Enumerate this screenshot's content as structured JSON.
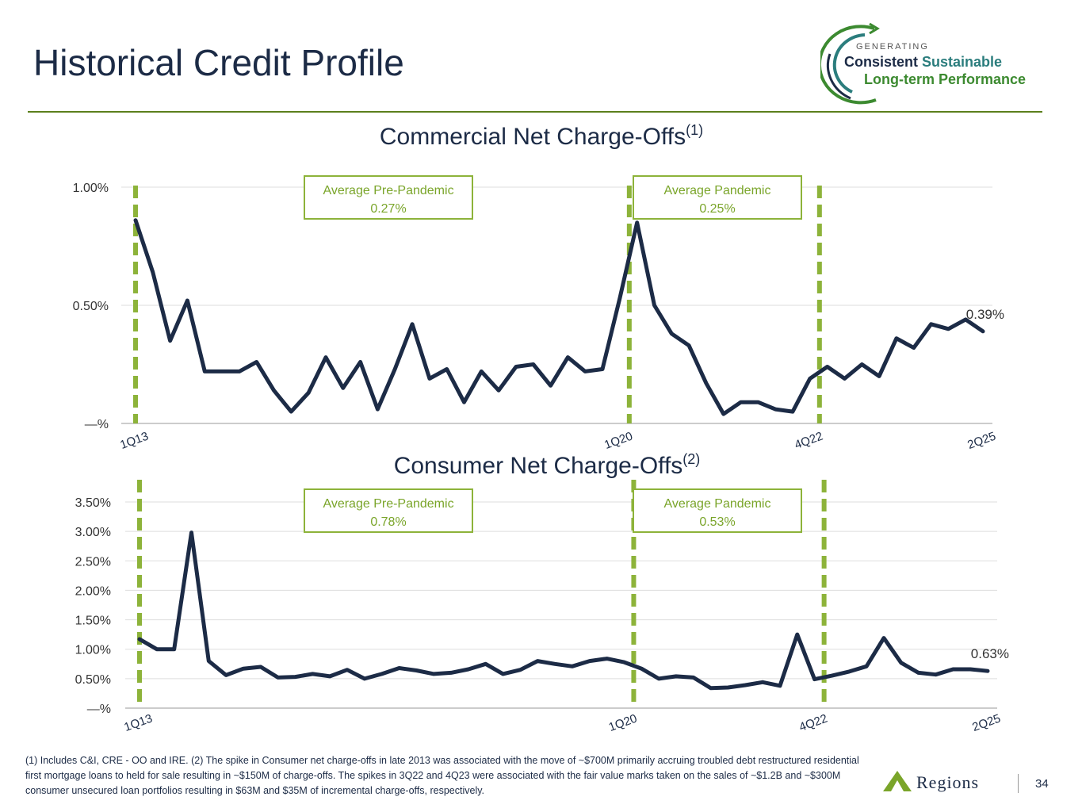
{
  "page": {
    "title": "Historical Credit Profile",
    "number": "34"
  },
  "brand": {
    "tag": "GENERATING",
    "line1_a": "Consistent",
    "line1_b": "Sustainable",
    "line2": "Long-term Performance",
    "footer_name": "Regions"
  },
  "colors": {
    "line": "#1c2b46",
    "dashed": "#8db33a",
    "box_border": "#8db33a",
    "box_text": "#7aa52a",
    "grid": "#dddddd",
    "title_rule": "#5b7f1c"
  },
  "footnote": "(1) Includes C&I, CRE - OO and IRE.  (2) The spike in Consumer net charge-offs in late 2013 was associated with the move of ~$700M primarily accruing troubled debt restructured residential first mortgage loans to held for sale resulting in ~$150M of charge-offs. The spikes in 3Q22 and 4Q23 were associated with the fair value marks taken on the sales of ~$1.2B and ~$300M consumer unsecured loan portfolios resulting in $63M and $35M of incremental charge-offs, respectively.",
  "chart_data": [
    {
      "type": "line",
      "title": "Commercial Net Charge-Offs",
      "title_sup": "(1)",
      "x_tick_labels": [
        "1Q13",
        "1Q20",
        "4Q22",
        "2Q25"
      ],
      "x_tick_index": [
        0,
        28,
        39,
        49
      ],
      "y_ticks": [
        0,
        0.5,
        1.0
      ],
      "y_tick_labels": [
        "—%",
        "0.50%",
        "1.00%"
      ],
      "ylim": [
        0,
        1.0
      ],
      "grid": true,
      "end_label": "0.39%",
      "dividers_index": [
        0,
        28,
        39
      ],
      "boxes": [
        {
          "line1": "Average Pre-Pandemic",
          "line2": "0.27%"
        },
        {
          "line1": "Average Pandemic",
          "line2": "0.25%"
        }
      ],
      "series": [
        {
          "values": [
            0.86,
            0.64,
            0.35,
            0.52,
            0.22,
            0.22,
            0.22,
            0.26,
            0.14,
            0.05,
            0.13,
            0.28,
            0.15,
            0.26,
            0.06,
            0.23,
            0.42,
            0.19,
            0.23,
            0.09,
            0.22,
            0.14,
            0.24,
            0.25,
            0.16,
            0.28,
            0.22,
            0.23,
            0.53,
            0.85,
            0.5,
            0.38,
            0.33,
            0.17,
            0.04,
            0.09,
            0.09,
            0.06,
            0.05,
            0.19,
            0.24,
            0.19,
            0.25,
            0.2,
            0.36,
            0.32,
            0.42,
            0.4,
            0.44,
            0.39
          ]
        }
      ]
    },
    {
      "type": "line",
      "title": "Consumer Net Charge-Offs",
      "title_sup": "(2)",
      "x_tick_labels": [
        "1Q13",
        "1Q20",
        "4Q22",
        "2Q25"
      ],
      "x_tick_index": [
        0,
        28,
        39,
        49
      ],
      "y_ticks": [
        0,
        0.5,
        1.0,
        1.5,
        2.0,
        2.5,
        3.0,
        3.5
      ],
      "y_tick_labels": [
        "—%",
        "0.50%",
        "1.00%",
        "1.50%",
        "2.00%",
        "2.50%",
        "3.00%",
        "3.50%"
      ],
      "ylim": [
        0,
        3.5
      ],
      "grid": true,
      "end_label": "0.63%",
      "dividers_index": [
        0,
        28,
        39
      ],
      "boxes": [
        {
          "line1": "Average Pre-Pandemic",
          "line2": "0.78%"
        },
        {
          "line1": "Average Pandemic",
          "line2": "0.53%"
        }
      ],
      "series": [
        {
          "values": [
            1.17,
            1.0,
            1.0,
            2.98,
            0.8,
            0.56,
            0.67,
            0.7,
            0.52,
            0.53,
            0.58,
            0.54,
            0.65,
            0.5,
            0.58,
            0.68,
            0.64,
            0.58,
            0.6,
            0.66,
            0.75,
            0.58,
            0.65,
            0.8,
            0.75,
            0.71,
            0.8,
            0.84,
            0.78,
            0.67,
            0.5,
            0.54,
            0.52,
            0.34,
            0.35,
            0.39,
            0.44,
            0.38,
            1.25,
            0.49,
            0.55,
            0.62,
            0.71,
            1.19,
            0.77,
            0.6,
            0.57,
            0.66,
            0.66,
            0.63
          ]
        }
      ]
    }
  ]
}
